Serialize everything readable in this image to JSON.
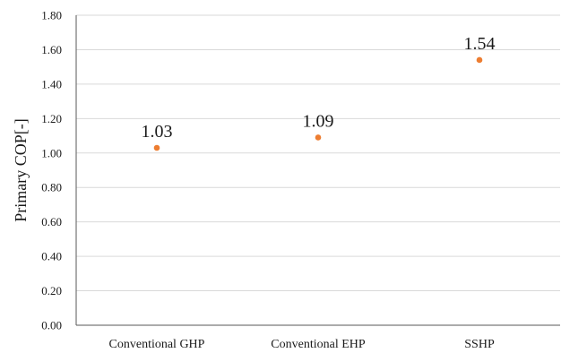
{
  "chart_data": {
    "type": "scatter",
    "title": "",
    "xlabel": "",
    "ylabel": "Primary COP[-]",
    "ylim": [
      0,
      1.8
    ],
    "ytick_step": 0.2,
    "yticks": [
      "0.00",
      "0.20",
      "0.40",
      "0.60",
      "0.80",
      "1.00",
      "1.20",
      "1.40",
      "1.60",
      "1.80"
    ],
    "categories": [
      "Conventional GHP",
      "Conventional EHP",
      "SSHP"
    ],
    "values": [
      1.03,
      1.09,
      1.54
    ],
    "data_labels": [
      "1.03",
      "1.09",
      "1.54"
    ],
    "grid": true,
    "legend": "none",
    "marker_color": "#ED7D31"
  }
}
